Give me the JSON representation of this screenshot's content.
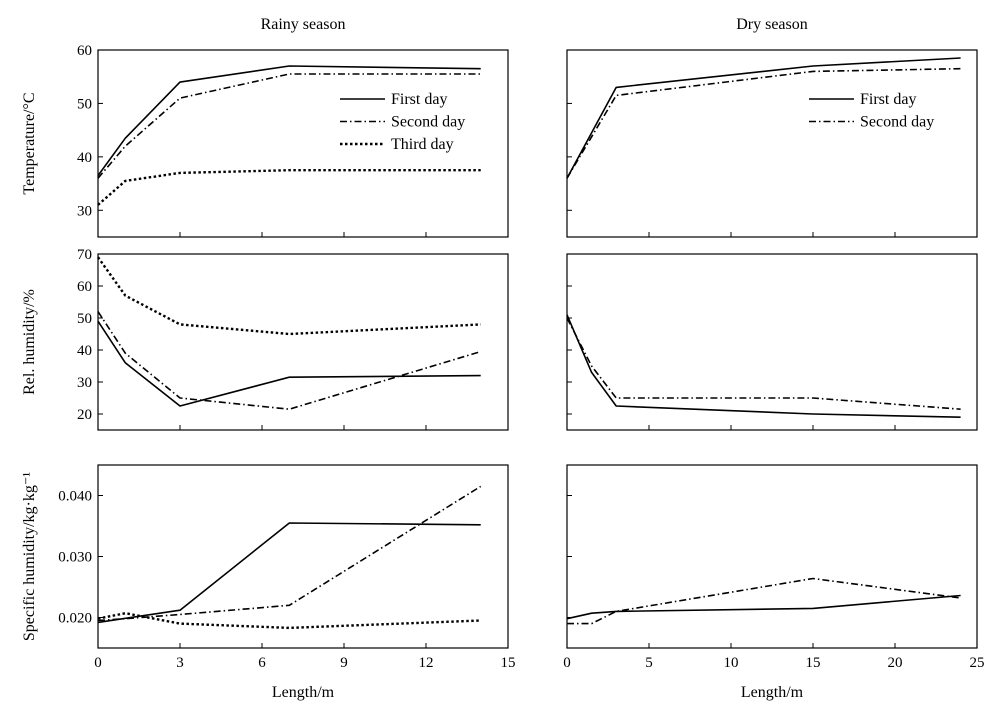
{
  "chart_data": {
    "type": "line",
    "columns": [
      {
        "id": "rainy",
        "title": "Rainy season"
      },
      {
        "id": "dry",
        "title": "Dry season"
      }
    ],
    "x_axes": {
      "rainy": {
        "xlabel": "Length/m",
        "xlim": [
          0,
          15
        ],
        "ticks": [
          0,
          3,
          6,
          9,
          12,
          15
        ],
        "tick_labels": [
          "0",
          "3",
          "6",
          "9",
          "12",
          "15"
        ]
      },
      "dry": {
        "xlabel": "Length/m",
        "xlim": [
          0,
          25
        ],
        "ticks": [
          0,
          5,
          10,
          15,
          20,
          25
        ],
        "tick_labels": [
          "0",
          "5",
          "10",
          "15",
          "20",
          "25"
        ]
      }
    },
    "rows": [
      {
        "id": "temp",
        "ylabel": "Temperature/°C",
        "ylim": [
          25,
          60
        ],
        "ticks": [
          30,
          40,
          50,
          60
        ],
        "tick_labels": [
          "30",
          "40",
          "50",
          "60"
        ]
      },
      {
        "id": "rh",
        "ylabel": "Rel. humidity/%",
        "ylim": [
          15,
          70
        ],
        "ticks": [
          20,
          30,
          40,
          50,
          60,
          70
        ],
        "tick_labels": [
          "20",
          "30",
          "40",
          "50",
          "60",
          "70"
        ]
      },
      {
        "id": "sh",
        "ylabel": "Specific humidity/kg·kg⁻¹",
        "ylim": [
          0.015,
          0.045
        ],
        "ticks": [
          0.02,
          0.03,
          0.04
        ],
        "tick_labels": [
          "0.020",
          "0.030",
          "0.040"
        ]
      }
    ],
    "panels": [
      {
        "column": "rainy",
        "row": "temp",
        "legend": "top-right",
        "series": [
          {
            "name": "First day",
            "style": "solid",
            "x": [
              0,
              1,
              3,
              7,
              14
            ],
            "y": [
              36.5,
              43.5,
              54,
              57,
              56.5
            ]
          },
          {
            "name": "Second day",
            "style": "dashdot",
            "x": [
              0,
              1,
              3,
              7,
              14
            ],
            "y": [
              36,
              42,
              51,
              55.5,
              55.5
            ]
          },
          {
            "name": "Third day",
            "style": "dotted",
            "x": [
              0,
              1,
              3,
              7,
              14
            ],
            "y": [
              31,
              35.5,
              37,
              37.5,
              37.5
            ]
          }
        ]
      },
      {
        "column": "dry",
        "row": "temp",
        "legend": "top-right",
        "series": [
          {
            "name": "First day",
            "style": "solid",
            "x": [
              0,
              3,
              15,
              24
            ],
            "y": [
              36,
              53,
              57,
              58.5
            ]
          },
          {
            "name": "Second day",
            "style": "dashdot",
            "x": [
              0,
              3,
              15,
              24
            ],
            "y": [
              36,
              51.5,
              56,
              56.5
            ]
          }
        ]
      },
      {
        "column": "rainy",
        "row": "rh",
        "series": [
          {
            "name": "First day",
            "style": "solid",
            "x": [
              0,
              1,
              3,
              7,
              14
            ],
            "y": [
              49,
              36,
              22.5,
              31.5,
              32
            ]
          },
          {
            "name": "Second day",
            "style": "dashdot",
            "x": [
              0,
              1,
              3,
              7,
              14
            ],
            "y": [
              52,
              39,
              25,
              21.5,
              39.5
            ]
          },
          {
            "name": "Third day",
            "style": "dotted",
            "x": [
              0,
              1,
              3,
              7,
              14
            ],
            "y": [
              69,
              57,
              48,
              45,
              48
            ]
          }
        ]
      },
      {
        "column": "dry",
        "row": "rh",
        "series": [
          {
            "name": "First day",
            "style": "solid",
            "x": [
              0,
              1.5,
              3,
              15,
              24
            ],
            "y": [
              51,
              33,
              22.5,
              20,
              19
            ]
          },
          {
            "name": "Second day",
            "style": "dashdot",
            "x": [
              0,
              1.5,
              3,
              15,
              24
            ],
            "y": [
              50,
              35,
              25,
              25,
              21.5
            ]
          }
        ]
      },
      {
        "column": "rainy",
        "row": "sh",
        "series": [
          {
            "name": "First day",
            "style": "solid",
            "x": [
              0,
              3,
              7,
              14
            ],
            "y": [
              0.0192,
              0.0212,
              0.0355,
              0.0352
            ]
          },
          {
            "name": "Second day",
            "style": "dashdot",
            "x": [
              0,
              1,
              3,
              7,
              14
            ],
            "y": [
              0.0195,
              0.0198,
              0.0205,
              0.022,
              0.0415
            ]
          },
          {
            "name": "Third day",
            "style": "dotted",
            "x": [
              0,
              1,
              3,
              7,
              14
            ],
            "y": [
              0.0198,
              0.0207,
              0.019,
              0.0183,
              0.0195
            ]
          }
        ]
      },
      {
        "column": "dry",
        "row": "sh",
        "series": [
          {
            "name": "First day",
            "style": "solid",
            "x": [
              0,
              1.5,
              3,
              15,
              24
            ],
            "y": [
              0.0198,
              0.0207,
              0.021,
              0.0215,
              0.0236
            ]
          },
          {
            "name": "Second day",
            "style": "dashdot",
            "x": [
              0,
              1.5,
              3,
              15,
              24
            ],
            "y": [
              0.019,
              0.019,
              0.021,
              0.0264,
              0.0232
            ]
          }
        ]
      }
    ]
  }
}
